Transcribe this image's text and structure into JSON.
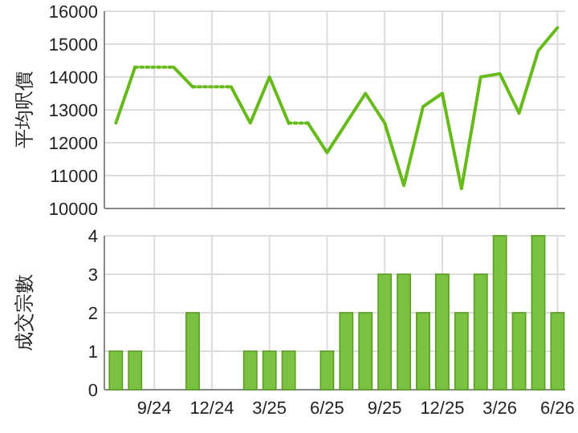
{
  "chart_data": [
    {
      "type": "line",
      "ylabel": "平均呎價",
      "categories": [
        null,
        null,
        null,
        null,
        null,
        null,
        null,
        null,
        null,
        null,
        null,
        null,
        null,
        null,
        null,
        null,
        null,
        null,
        null,
        null,
        null,
        null,
        null,
        null
      ],
      "tick_labels": "y",
      "ylim": [
        10000,
        16000
      ],
      "yticks": [
        10000,
        11000,
        12000,
        13000,
        14000,
        15000,
        16000
      ],
      "grid": true,
      "series": [
        {
          "color": "#66bb1a",
          "line_style": "solid",
          "values": [
            12600,
            14300,
            null,
            null,
            null,
            null,
            null,
            null,
            null,
            null,
            null,
            null,
            null,
            null,
            null,
            null,
            null,
            null,
            null,
            null,
            null,
            null,
            null,
            null
          ]
        },
        {
          "color": "#66bb1a",
          "line_style": "dotted",
          "values": [
            null,
            14300,
            14300,
            14300,
            null,
            null,
            null,
            null,
            null,
            null,
            null,
            null,
            null,
            null,
            null,
            null,
            null,
            null,
            null,
            null,
            null,
            null,
            null,
            null
          ]
        },
        {
          "color": "#66bb1a",
          "line_style": "solid",
          "values": [
            null,
            null,
            null,
            14300,
            13700,
            null,
            null,
            null,
            null,
            null,
            null,
            null,
            null,
            null,
            null,
            null,
            null,
            null,
            null,
            null,
            null,
            null,
            null,
            null
          ]
        },
        {
          "color": "#66bb1a",
          "line_style": "dotted",
          "values": [
            null,
            null,
            null,
            null,
            13700,
            13700,
            13700,
            null,
            null,
            null,
            null,
            null,
            null,
            null,
            null,
            null,
            null,
            null,
            null,
            null,
            null,
            null,
            null,
            null
          ]
        },
        {
          "color": "#66bb1a",
          "line_style": "solid",
          "values": [
            null,
            null,
            null,
            null,
            null,
            null,
            13700,
            12600,
            14000,
            12600,
            null,
            null,
            null,
            null,
            null,
            null,
            null,
            null,
            null,
            null,
            null,
            null,
            null,
            null
          ]
        },
        {
          "color": "#66bb1a",
          "line_style": "dotted",
          "values": [
            null,
            null,
            null,
            null,
            null,
            null,
            null,
            null,
            null,
            12600,
            12600,
            null,
            null,
            null,
            null,
            null,
            null,
            null,
            null,
            null,
            null,
            null,
            null,
            null
          ]
        },
        {
          "color": "#66bb1a",
          "line_style": "solid",
          "values": [
            null,
            null,
            null,
            null,
            null,
            null,
            null,
            null,
            null,
            null,
            12600,
            11700,
            12600,
            13500,
            12600,
            10700,
            13100,
            13500,
            10600,
            14000,
            14100,
            12900,
            14800,
            15500
          ]
        }
      ]
    },
    {
      "type": "bar",
      "ylabel": "成交宗數",
      "categories": [
        null,
        null,
        "9/24",
        null,
        null,
        "12/24",
        null,
        null,
        "3/25",
        null,
        null,
        "6/25",
        null,
        null,
        "9/25",
        null,
        null,
        "12/25",
        null,
        null,
        "3/26",
        null,
        null,
        "6/26"
      ],
      "ylim": [
        0,
        4
      ],
      "yticks": [
        0,
        1,
        2,
        3,
        4
      ],
      "grid": true,
      "color": "#7cc242",
      "values": [
        1,
        1,
        0,
        0,
        2,
        0,
        0,
        1,
        1,
        1,
        0,
        1,
        2,
        2,
        3,
        3,
        2,
        3,
        2,
        3,
        4,
        2,
        4,
        2
      ]
    }
  ]
}
